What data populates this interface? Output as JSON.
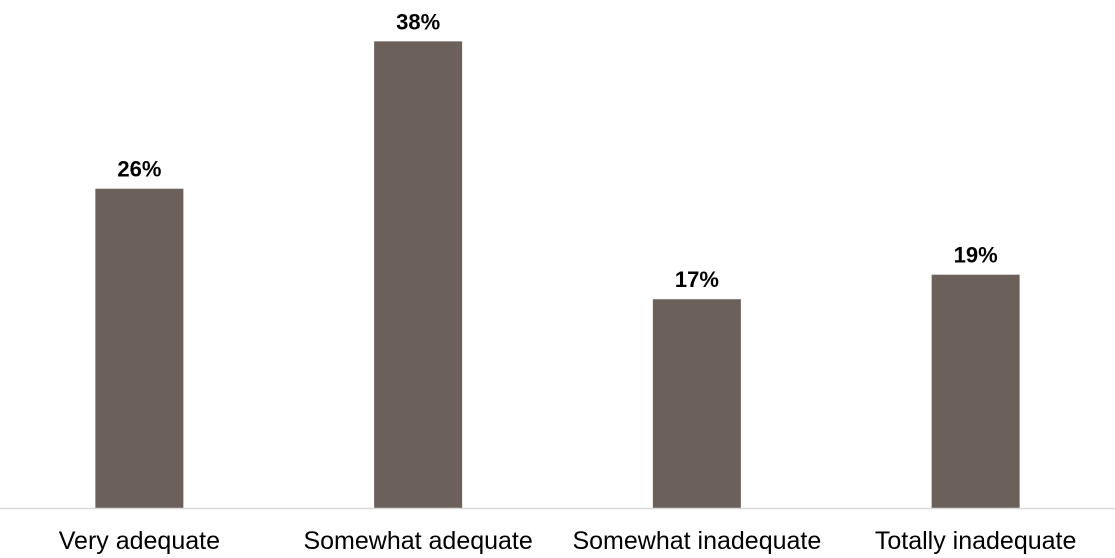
{
  "chart_data": {
    "type": "bar",
    "categories": [
      "Very adequate",
      "Somewhat adequate",
      "Somewhat inadequate",
      "Totally inadequate"
    ],
    "values": [
      26,
      38,
      17,
      19
    ],
    "data_labels": [
      "26%",
      "38%",
      "17%",
      "19%"
    ],
    "unit": "%",
    "title": "",
    "xlabel": "",
    "ylabel": "",
    "ylim": [
      0,
      40
    ],
    "grid": false,
    "legend": "none",
    "bar_color": "#6b605a",
    "axis_color": "#d9d9d9"
  }
}
